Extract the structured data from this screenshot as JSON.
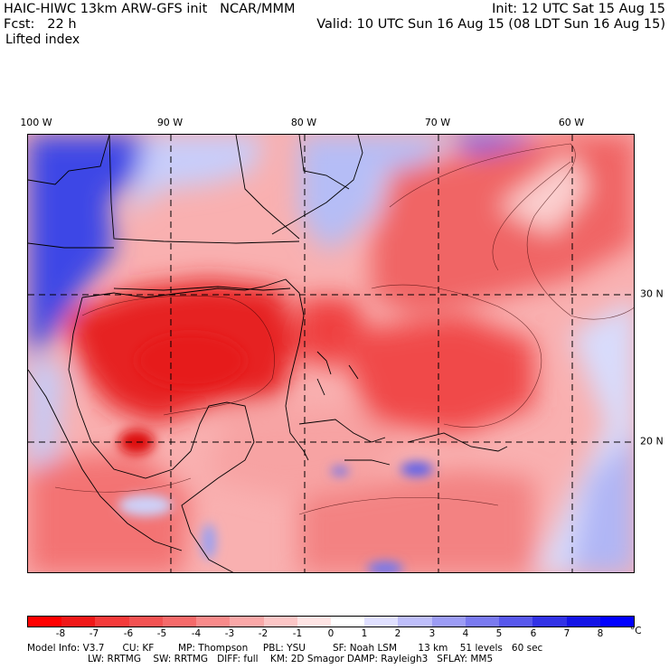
{
  "header": {
    "title_left": "HAIC-HIWC 13km ARW-GFS init   NCAR/MMM",
    "fcst_left": "Fcst:   22 h",
    "field": "Lifted index",
    "init": "Init: 12 UTC Sat 15 Aug 15",
    "valid": "Valid: 10 UTC Sun 16 Aug 15 (08 LDT Sun 16 Aug 15)"
  },
  "map": {
    "longitude_labels": [
      "100 W",
      "90 W",
      "80 W",
      "70 W",
      "60 W"
    ],
    "latitude_labels": [
      "30 N",
      "20 N"
    ]
  },
  "colorbar": {
    "ticks": [
      "-8",
      "-7",
      "-6",
      "-5",
      "-4",
      "-3",
      "-2",
      "-1",
      "0",
      "1",
      "2",
      "3",
      "4",
      "5",
      "6",
      "7",
      "8"
    ],
    "unit": "°C",
    "colors": [
      "#ff0000",
      "#f01818",
      "#f43a3a",
      "#f25252",
      "#f56a6a",
      "#f88a8a",
      "#faa8a8",
      "#fcc6c6",
      "#fee4e4",
      "#ffffff",
      "#e0e0ff",
      "#bebefa",
      "#9c9cf5",
      "#7a7af0",
      "#5858ec",
      "#3232e6",
      "#1414e6",
      "#0000ff"
    ]
  },
  "footer": {
    "line1": "Model Info: V3.7      CU: KF        MP: Thompson     PBL: YSU         SF: Noah LSM       13 km    51 levels   60 sec",
    "line2": "LW: RRTMG    SW: RRTMG   DIFF: full    KM: 2D Smagor DAMP: Rayleigh3   SFLAY: MM5"
  }
}
